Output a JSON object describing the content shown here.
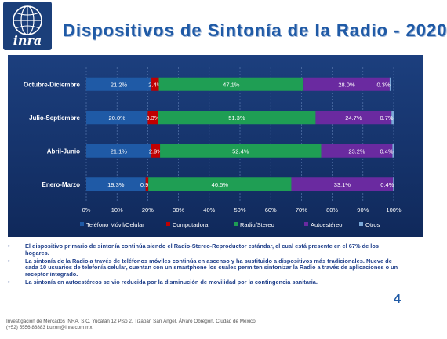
{
  "logo": {
    "text": "inra"
  },
  "title": "Dispositivos de Sintonía de la Radio - 2020",
  "chart_data": {
    "type": "bar",
    "orientation": "horizontal",
    "stacked": "percent",
    "categories": [
      "Octubre-Diciembre",
      "Julio-Septiembre",
      "Abril-Junio",
      "Enero-Marzo"
    ],
    "series": [
      {
        "name": "Teléfono Móvil/Celular",
        "color": "#1f5aa6",
        "values": [
          21.2,
          20.0,
          21.1,
          19.3
        ],
        "labels": [
          "21.2%",
          "20.0%",
          "21.1%",
          "19.3%"
        ]
      },
      {
        "name": "Computadora",
        "color": "#c00000",
        "values": [
          2.4,
          3.3,
          2.9,
          0.9
        ],
        "labels": [
          "2.4%",
          "3.3%",
          "2.9%",
          "0.9%"
        ]
      },
      {
        "name": "Radio/Stereo",
        "color": "#1f9e54",
        "values": [
          47.1,
          51.3,
          52.4,
          46.5
        ],
        "labels": [
          "47.1%",
          "51.3%",
          "52.4%",
          "46.5%"
        ]
      },
      {
        "name": "Autoestéreo",
        "color": "#6a2aa0",
        "values": [
          28.0,
          24.7,
          23.2,
          33.1
        ],
        "labels": [
          "28.0%",
          "24.7%",
          "23.2%",
          "33.1%"
        ]
      },
      {
        "name": "Otros",
        "color": "#7aa8d8",
        "values": [
          0.3,
          0.7,
          0.4,
          0.4
        ],
        "labels": [
          "0.3%",
          "0.7%",
          "0.4%",
          "0.4%"
        ]
      }
    ],
    "xticks": [
      "0%",
      "10%",
      "20%",
      "30%",
      "40%",
      "50%",
      "60%",
      "70%",
      "80%",
      "90%",
      "100%"
    ],
    "xlim": [
      0,
      100
    ],
    "grid": true,
    "legend": "bottom"
  },
  "bullets": [
    "El dispositivo primario de sintonía continúa siendo el Radio-Stereo-Reproductor estándar, el cual está presente en el 67% de los hogares.",
    "La sintonía de la Radio a través de teléfonos móviles continúa en ascenso y ha sustituido a dispositivos más tradicionales. Nueve de cada 10 usuarios de telefonía celular, cuentan con un smartphone los cuales permiten sintonizar la Radio a través de aplicaciones o un receptor integrado.",
    "La sintonía en autoestéreos se vio reducida por la disminución de movilidad por la contingencia sanitaria."
  ],
  "page_number": "4",
  "footer": {
    "line1": "Investigación de Mercados INRA, S.C. Yucatán 12 Piso 2, Tizapán San Ángel, Álvaro Obregón, Ciudad de México",
    "line2": "(+52) 5556 88883 buzon@inra.com.mx"
  }
}
